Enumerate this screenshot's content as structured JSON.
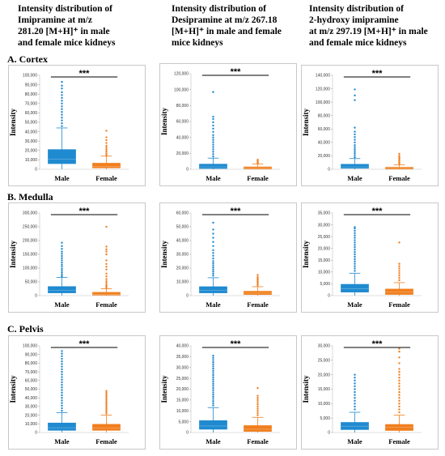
{
  "column_titles": [
    [
      "Intensity distribution of",
      "Imipramine at m/z",
      "281.20 [M+H]⁺ in male",
      "and female mice kidneys"
    ],
    [
      "Intensity distribution of",
      "Desipramine at m/z 267.18",
      "[M+H]⁺ in male and female",
      "mice kidneys"
    ],
    [
      "Intensity distribution of",
      "2-hydroxy imipramine",
      "at m/z 297.19 [M+H]⁺ in male",
      "and female mice kidneys"
    ]
  ],
  "row_titles": [
    "A. Cortex",
    "B. Medulla",
    "C. Pelvis"
  ],
  "colors": {
    "male": "#1f8ad0",
    "female": "#f07f1e",
    "frame": "#c8c8c8"
  },
  "chart_data": [
    {
      "type": "box",
      "region": "A. Cortex",
      "compound": "Imipramine",
      "ylabel": "Intensity",
      "categories": [
        "Male",
        "Female"
      ],
      "ylim": [
        0,
        100000
      ],
      "yticks": [
        0,
        10000,
        20000,
        30000,
        40000,
        50000,
        60000,
        70000,
        80000,
        90000,
        100000
      ],
      "ytick_labels": [
        "0",
        "10,000",
        "20,000",
        "30,000",
        "40,000",
        "50,000",
        "60,000",
        "70,000",
        "80,000",
        "90,000",
        "100,000"
      ],
      "significance": "***",
      "boxes": [
        {
          "name": "Male",
          "q1": 6000,
          "median": 11000,
          "q3": 21000,
          "whisker_low": 0,
          "whisker_high": 44000,
          "outliers": [
            46000,
            49000,
            52000,
            55000,
            58000,
            61000,
            64000,
            67000,
            70000,
            73000,
            76000,
            79000,
            82000,
            86000,
            89000,
            93000
          ]
        },
        {
          "name": "Female",
          "q1": 1500,
          "median": 3000,
          "q3": 6500,
          "whisker_low": 0,
          "whisker_high": 14000,
          "outliers": [
            15000,
            17000,
            19000,
            21000,
            23000,
            25000,
            28000,
            31000,
            34000,
            41000
          ]
        }
      ]
    },
    {
      "type": "box",
      "region": "A. Cortex",
      "compound": "Desipramine",
      "ylabel": "Intensity",
      "categories": [
        "Male",
        "Female"
      ],
      "ylim": [
        0,
        120000
      ],
      "yticks": [
        0,
        20000,
        40000,
        60000,
        80000,
        100000,
        120000
      ],
      "ytick_labels": [
        "0",
        "20,000",
        "40,000",
        "60,000",
        "80,000",
        "100,000",
        "120,000"
      ],
      "significance": "***",
      "boxes": [
        {
          "name": "Male",
          "q1": 1000,
          "median": 3000,
          "q3": 6500,
          "whisker_low": 0,
          "whisker_high": 14000,
          "outliers": [
            16000,
            19000,
            22000,
            25000,
            28000,
            31000,
            34000,
            37000,
            40000,
            43000,
            47000,
            51000,
            55000,
            59000,
            63000,
            66000,
            97000
          ]
        },
        {
          "name": "Female",
          "q1": 500,
          "median": 1500,
          "q3": 3000,
          "whisker_low": 0,
          "whisker_high": 6500,
          "outliers": [
            7500,
            9000,
            10500,
            12000
          ]
        }
      ]
    },
    {
      "type": "box",
      "region": "A. Cortex",
      "compound": "2-hydroxy imipramine",
      "ylabel": "Intensity",
      "categories": [
        "Male",
        "Female"
      ],
      "ylim": [
        0,
        140000
      ],
      "yticks": [
        0,
        20000,
        40000,
        60000,
        80000,
        100000,
        120000,
        140000
      ],
      "ytick_labels": [
        "0",
        "20,000",
        "40,000",
        "60,000",
        "80,000",
        "100,000",
        "120,000",
        "140,000"
      ],
      "significance": "***",
      "boxes": [
        {
          "name": "Male",
          "q1": 1500,
          "median": 3500,
          "q3": 7500,
          "whisker_low": 0,
          "whisker_high": 16000,
          "outliers": [
            18000,
            21000,
            24000,
            27000,
            30000,
            33000,
            36000,
            40000,
            44000,
            48000,
            52000,
            56000,
            62000,
            103000,
            110000,
            119000
          ]
        },
        {
          "name": "Female",
          "q1": 500,
          "median": 1500,
          "q3": 3000,
          "whisker_low": 0,
          "whisker_high": 6500,
          "outliers": [
            8000,
            10000,
            12000,
            14000,
            16000,
            18000,
            20000,
            23000
          ]
        }
      ]
    },
    {
      "type": "box",
      "region": "B. Medulla",
      "compound": "Imipramine",
      "ylabel": "Intensity",
      "categories": [
        "Male",
        "Female"
      ],
      "ylim": [
        0,
        300000
      ],
      "yticks": [
        0,
        50000,
        100000,
        150000,
        200000,
        250000,
        300000
      ],
      "ytick_labels": [
        "0",
        "50,000",
        "100,000",
        "150,000",
        "200,000",
        "250,000",
        "300,000"
      ],
      "significance": "***",
      "boxes": [
        {
          "name": "Male",
          "q1": 10000,
          "median": 20000,
          "q3": 33000,
          "whisker_low": 0,
          "whisker_high": 66000,
          "outliers": [
            70000,
            76000,
            83000,
            90000,
            97000,
            105000,
            112000,
            120000,
            128000,
            136000,
            144000,
            152000,
            160000,
            170000,
            180000,
            192000
          ]
        },
        {
          "name": "Female",
          "q1": 2000,
          "median": 5000,
          "q3": 12000,
          "whisker_low": 0,
          "whisker_high": 25000,
          "outliers": [
            28000,
            33000,
            38000,
            45000,
            52000,
            60000,
            70000,
            80000,
            95000,
            105000,
            115000,
            128000,
            150000,
            160000,
            168000,
            178000,
            250000
          ]
        }
      ]
    },
    {
      "type": "box",
      "region": "B. Medulla",
      "compound": "Desipramine",
      "ylabel": "Intensity",
      "categories": [
        "Male",
        "Female"
      ],
      "ylim": [
        0,
        60000
      ],
      "yticks": [
        0,
        10000,
        20000,
        30000,
        40000,
        50000,
        60000
      ],
      "ytick_labels": [
        "0",
        "10,000",
        "20,000",
        "30,000",
        "40,000",
        "50,000",
        "60,000"
      ],
      "significance": "***",
      "boxes": [
        {
          "name": "Male",
          "q1": 2000,
          "median": 4000,
          "q3": 6500,
          "whisker_low": 0,
          "whisker_high": 13000,
          "outliers": [
            14500,
            16000,
            17500,
            19000,
            20500,
            22000,
            23500,
            25000,
            27000,
            29000,
            31000,
            33000,
            36000,
            39000,
            42000,
            45000,
            48000,
            53000
          ]
        },
        {
          "name": "Female",
          "q1": 800,
          "median": 1800,
          "q3": 3200,
          "whisker_low": 0,
          "whisker_high": 6500,
          "outliers": [
            7500,
            8500,
            9500,
            10500,
            11500,
            12500,
            13500,
            15000
          ]
        }
      ]
    },
    {
      "type": "box",
      "region": "B. Medulla",
      "compound": "2-hydroxy imipramine",
      "ylabel": "Intensity",
      "categories": [
        "Male",
        "Female"
      ],
      "ylim": [
        0,
        35000
      ],
      "yticks": [
        0,
        5000,
        10000,
        15000,
        20000,
        25000,
        30000,
        35000
      ],
      "ytick_labels": [
        "0",
        "5,000",
        "10,000",
        "15,000",
        "20,000",
        "25,000",
        "30,000",
        "35,000"
      ],
      "significance": "***",
      "boxes": [
        {
          "name": "Male",
          "q1": 1500,
          "median": 3000,
          "q3": 4800,
          "whisker_low": 0,
          "whisker_high": 9500,
          "outliers": [
            10500,
            11500,
            12500,
            13500,
            14500,
            15500,
            16500,
            17500,
            18500,
            19500,
            20500,
            21500,
            22500,
            23500,
            24500,
            25500,
            26500,
            27500,
            28500,
            29000
          ]
        },
        {
          "name": "Female",
          "q1": 500,
          "median": 1500,
          "q3": 2800,
          "whisker_low": 0,
          "whisker_high": 5500,
          "outliers": [
            6500,
            7500,
            8500,
            9500,
            10500,
            11500,
            12500,
            13500,
            22500
          ]
        }
      ]
    },
    {
      "type": "box",
      "region": "C. Pelvis",
      "compound": "Imipramine",
      "ylabel": "Intensity",
      "categories": [
        "Male",
        "Female"
      ],
      "ylim": [
        0,
        100000
      ],
      "yticks": [
        0,
        10000,
        20000,
        30000,
        40000,
        50000,
        60000,
        70000,
        80000,
        90000,
        100000
      ],
      "ytick_labels": [
        "0",
        "10,000",
        "20,000",
        "30,000",
        "40,000",
        "50,000",
        "60,000",
        "70,000",
        "80,000",
        "90,000",
        "100,000"
      ],
      "significance": "***",
      "boxes": [
        {
          "name": "Male",
          "q1": 2500,
          "median": 5500,
          "q3": 11000,
          "whisker_low": 0,
          "whisker_high": 23000,
          "outliers": [
            25000,
            28000,
            31000,
            34000,
            37000,
            40000,
            43000,
            46000,
            49000,
            52000,
            55000,
            58000,
            61000,
            64000,
            67000,
            70000,
            73000,
            76000,
            79000,
            82000,
            85000,
            88000,
            91000,
            94000
          ]
        },
        {
          "name": "Female",
          "q1": 2500,
          "median": 5000,
          "q3": 9500,
          "whisker_low": 0,
          "whisker_high": 20000,
          "outliers": [
            22000,
            24000,
            26000,
            28000,
            30000,
            32000,
            34000,
            36000,
            38000,
            40000,
            42000,
            44000,
            46000,
            48000
          ]
        }
      ]
    },
    {
      "type": "box",
      "region": "C. Pelvis",
      "compound": "Desipramine",
      "ylabel": "Intensity",
      "categories": [
        "Male",
        "Female"
      ],
      "ylim": [
        0,
        40000
      ],
      "yticks": [
        0,
        5000,
        10000,
        15000,
        20000,
        25000,
        30000,
        35000,
        40000
      ],
      "ytick_labels": [
        "0",
        "5,000",
        "10,000",
        "15,000",
        "20,000",
        "25,000",
        "30,000",
        "35,000",
        "40,000"
      ],
      "significance": "***",
      "boxes": [
        {
          "name": "Male",
          "q1": 1500,
          "median": 3000,
          "q3": 5500,
          "whisker_low": 0,
          "whisker_high": 11500,
          "outliers": [
            12500,
            13500,
            14500,
            15500,
            16500,
            17500,
            18500,
            19500,
            20500,
            21500,
            22500,
            23500,
            24500,
            25500,
            26500,
            27500,
            28500,
            29500,
            30500,
            31500,
            32500,
            33500,
            34500,
            35500
          ]
        },
        {
          "name": "Female",
          "q1": 500,
          "median": 1500,
          "q3": 3200,
          "whisker_low": 0,
          "whisker_high": 7000,
          "outliers": [
            8000,
            9000,
            10000,
            11000,
            12000,
            13000,
            14000,
            15000,
            16000,
            17000,
            20500
          ]
        }
      ]
    },
    {
      "type": "box",
      "region": "C. Pelvis",
      "compound": "2-hydroxy imipramine",
      "ylabel": "Intensity",
      "categories": [
        "Male",
        "Female"
      ],
      "ylim": [
        0,
        30000
      ],
      "yticks": [
        0,
        5000,
        10000,
        15000,
        20000,
        25000,
        30000
      ],
      "ytick_labels": [
        "0",
        "5,000",
        "10,000",
        "15,000",
        "20,000",
        "25,000",
        "30,000"
      ],
      "significance": "***",
      "boxes": [
        {
          "name": "Male",
          "q1": 1000,
          "median": 2200,
          "q3": 3500,
          "whisker_low": 0,
          "whisker_high": 7000,
          "outliers": [
            8000,
            9000,
            10000,
            11000,
            12000,
            13000,
            14000,
            15000,
            16000,
            17000,
            18000,
            19000,
            20000
          ]
        },
        {
          "name": "Female",
          "q1": 700,
          "median": 1800,
          "q3": 2800,
          "whisker_low": 0,
          "whisker_high": 6000,
          "outliers": [
            7000,
            8000,
            9000,
            10000,
            11000,
            12000,
            13000,
            14000,
            15000,
            16000,
            17000,
            18000,
            19000,
            20000,
            21000,
            22000,
            24000,
            26000,
            28000,
            29000
          ]
        }
      ]
    }
  ]
}
